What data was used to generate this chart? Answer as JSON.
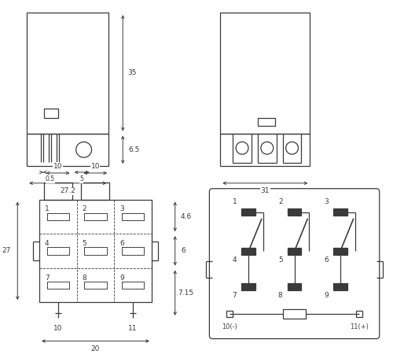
{
  "bg_color": "#ffffff",
  "line_color": "#3a3a3a",
  "lw": 0.9,
  "dfs": 6.5
}
